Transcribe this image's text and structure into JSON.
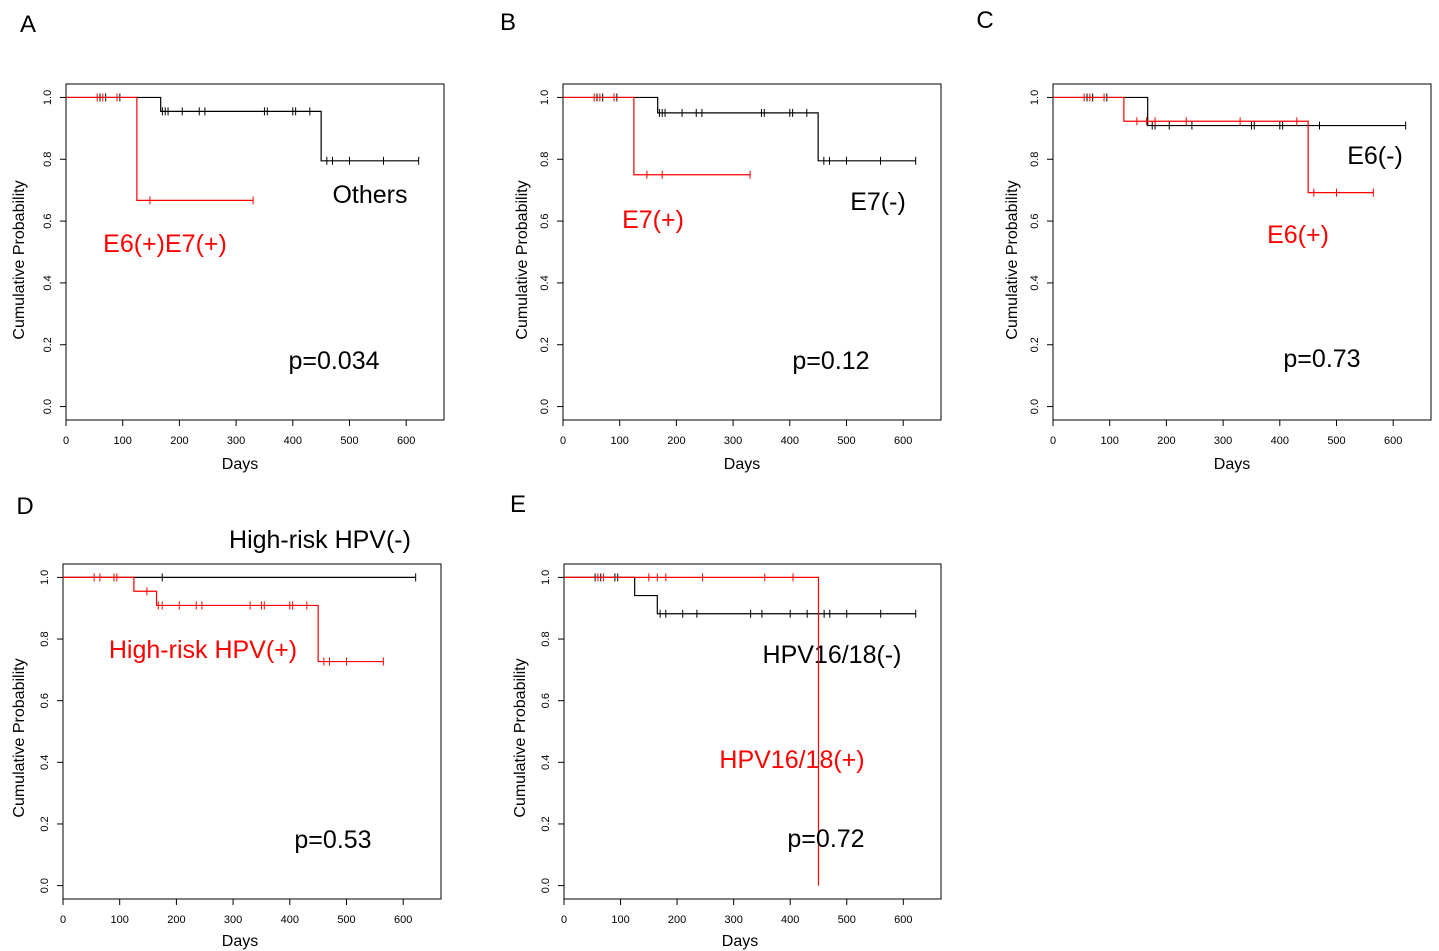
{
  "colors": {
    "black_group": "#000000",
    "red_group": "#ff0000"
  },
  "chart_data": [
    {
      "type": "line",
      "subtype": "kaplan-meier",
      "panel": "A",
      "xlabel": "Days",
      "ylabel": "Cumulative Probability",
      "xlim": [
        0,
        640
      ],
      "ylim": [
        0,
        1
      ],
      "xticks": [
        0,
        100,
        200,
        300,
        400,
        500,
        600
      ],
      "yticks": [
        0.0,
        0.2,
        0.4,
        0.6,
        0.8,
        1.0
      ],
      "series": [
        {
          "name": "Others",
          "color": "#000000",
          "steps": [
            [
              0,
              1.0
            ],
            [
              167,
              0.955
            ],
            [
              450,
              0.795
            ],
            [
              622,
              0.795
            ]
          ],
          "censors": [
            [
              60,
              1.0
            ],
            [
              70,
              1.0
            ],
            [
              95,
              1.0
            ],
            [
              170,
              0.955
            ],
            [
              175,
              0.955
            ],
            [
              180,
              0.955
            ],
            [
              205,
              0.955
            ],
            [
              235,
              0.955
            ],
            [
              245,
              0.955
            ],
            [
              350,
              0.955
            ],
            [
              355,
              0.955
            ],
            [
              400,
              0.955
            ],
            [
              405,
              0.955
            ],
            [
              430,
              0.955
            ],
            [
              460,
              0.795
            ],
            [
              470,
              0.795
            ],
            [
              500,
              0.795
            ],
            [
              560,
              0.795
            ],
            [
              622,
              0.795
            ]
          ]
        },
        {
          "name": "E6(+)E7(+)",
          "color": "#ff0000",
          "steps": [
            [
              0,
              1.0
            ],
            [
              125,
              0.667
            ],
            [
              330,
              0.667
            ]
          ],
          "censors": [
            [
              55,
              1.0
            ],
            [
              65,
              1.0
            ],
            [
              90,
              1.0
            ],
            [
              148,
              0.667
            ],
            [
              330,
              0.667
            ]
          ]
        }
      ],
      "annotation": "p=0.034"
    },
    {
      "type": "line",
      "subtype": "kaplan-meier",
      "panel": "B",
      "xlabel": "Days",
      "ylabel": "Cumulative Probability",
      "xlim": [
        0,
        640
      ],
      "ylim": [
        0,
        1
      ],
      "xticks": [
        0,
        100,
        200,
        300,
        400,
        500,
        600
      ],
      "yticks": [
        0.0,
        0.2,
        0.4,
        0.6,
        0.8,
        1.0
      ],
      "series": [
        {
          "name": "E7(-)",
          "color": "#000000",
          "steps": [
            [
              0,
              1.0
            ],
            [
              167,
              0.95
            ],
            [
              450,
              0.795
            ],
            [
              622,
              0.795
            ]
          ],
          "censors": [
            [
              60,
              1.0
            ],
            [
              70,
              1.0
            ],
            [
              95,
              1.0
            ],
            [
              170,
              0.95
            ],
            [
              175,
              0.95
            ],
            [
              180,
              0.95
            ],
            [
              210,
              0.95
            ],
            [
              235,
              0.95
            ],
            [
              245,
              0.95
            ],
            [
              350,
              0.95
            ],
            [
              355,
              0.95
            ],
            [
              400,
              0.95
            ],
            [
              405,
              0.95
            ],
            [
              430,
              0.95
            ],
            [
              460,
              0.795
            ],
            [
              470,
              0.795
            ],
            [
              500,
              0.795
            ],
            [
              560,
              0.795
            ],
            [
              622,
              0.795
            ]
          ]
        },
        {
          "name": "E7(+)",
          "color": "#ff0000",
          "steps": [
            [
              0,
              1.0
            ],
            [
              125,
              0.75
            ],
            [
              330,
              0.75
            ]
          ],
          "censors": [
            [
              55,
              1.0
            ],
            [
              65,
              1.0
            ],
            [
              90,
              1.0
            ],
            [
              148,
              0.75
            ],
            [
              175,
              0.75
            ],
            [
              330,
              0.75
            ]
          ]
        }
      ],
      "annotation": "p=0.12"
    },
    {
      "type": "line",
      "subtype": "kaplan-meier",
      "panel": "C",
      "xlabel": "Days",
      "ylabel": "Cumulative Probability",
      "xlim": [
        0,
        640
      ],
      "ylim": [
        0,
        1
      ],
      "xticks": [
        0,
        100,
        200,
        300,
        400,
        500,
        600
      ],
      "yticks": [
        0.0,
        0.2,
        0.4,
        0.6,
        0.8,
        1.0
      ],
      "series": [
        {
          "name": "E6(-)",
          "color": "#000000",
          "steps": [
            [
              0,
              1.0
            ],
            [
              167,
              0.909
            ],
            [
              622,
              0.909
            ]
          ],
          "censors": [
            [
              60,
              1.0
            ],
            [
              70,
              1.0
            ],
            [
              95,
              1.0
            ],
            [
              175,
              0.909
            ],
            [
              180,
              0.909
            ],
            [
              205,
              0.909
            ],
            [
              245,
              0.909
            ],
            [
              350,
              0.909
            ],
            [
              355,
              0.909
            ],
            [
              400,
              0.909
            ],
            [
              405,
              0.909
            ],
            [
              470,
              0.909
            ],
            [
              622,
              0.909
            ]
          ]
        },
        {
          "name": "E6(+)",
          "color": "#ff0000",
          "steps": [
            [
              0,
              1.0
            ],
            [
              125,
              0.923
            ],
            [
              450,
              0.692
            ],
            [
              565,
              0.692
            ]
          ],
          "censors": [
            [
              55,
              1.0
            ],
            [
              65,
              1.0
            ],
            [
              90,
              1.0
            ],
            [
              148,
              0.923
            ],
            [
              165,
              0.923
            ],
            [
              180,
              0.923
            ],
            [
              235,
              0.923
            ],
            [
              330,
              0.923
            ],
            [
              430,
              0.923
            ],
            [
              460,
              0.692
            ],
            [
              500,
              0.692
            ],
            [
              565,
              0.692
            ]
          ]
        }
      ],
      "annotation": "p=0.73"
    },
    {
      "type": "line",
      "subtype": "kaplan-meier",
      "panel": "D",
      "xlabel": "Days",
      "ylabel": "Cumulative Probability",
      "xlim": [
        0,
        640
      ],
      "ylim": [
        0,
        1
      ],
      "xticks": [
        0,
        100,
        200,
        300,
        400,
        500,
        600
      ],
      "yticks": [
        0.0,
        0.2,
        0.4,
        0.6,
        0.8,
        1.0
      ],
      "series": [
        {
          "name": "High-risk HPV(-)",
          "color": "#000000",
          "steps": [
            [
              0,
              1.0
            ],
            [
              622,
              1.0
            ]
          ],
          "censors": [
            [
              175,
              1.0
            ],
            [
              622,
              1.0
            ]
          ]
        },
        {
          "name": "High-risk HPV(+)",
          "color": "#ff0000",
          "steps": [
            [
              0,
              1.0
            ],
            [
              125,
              0.955
            ],
            [
              165,
              0.909
            ],
            [
              450,
              0.727
            ],
            [
              565,
              0.727
            ]
          ],
          "censors": [
            [
              55,
              1.0
            ],
            [
              65,
              1.0
            ],
            [
              90,
              1.0
            ],
            [
              95,
              1.0
            ],
            [
              148,
              0.955
            ],
            [
              168,
              0.909
            ],
            [
              175,
              0.909
            ],
            [
              205,
              0.909
            ],
            [
              235,
              0.909
            ],
            [
              245,
              0.909
            ],
            [
              330,
              0.909
            ],
            [
              350,
              0.909
            ],
            [
              355,
              0.909
            ],
            [
              400,
              0.909
            ],
            [
              405,
              0.909
            ],
            [
              430,
              0.909
            ],
            [
              460,
              0.727
            ],
            [
              470,
              0.727
            ],
            [
              500,
              0.727
            ],
            [
              565,
              0.727
            ]
          ]
        }
      ],
      "annotation": "p=0.53"
    },
    {
      "type": "line",
      "subtype": "kaplan-meier",
      "panel": "E",
      "xlabel": "Days",
      "ylabel": "Cumulative Probability",
      "xlim": [
        0,
        640
      ],
      "ylim": [
        0,
        1
      ],
      "xticks": [
        0,
        100,
        200,
        300,
        400,
        500,
        600
      ],
      "yticks": [
        0.0,
        0.2,
        0.4,
        0.6,
        0.8,
        1.0
      ],
      "series": [
        {
          "name": "HPV16/18(-)",
          "color": "#000000",
          "steps": [
            [
              0,
              1.0
            ],
            [
              125,
              0.941
            ],
            [
              165,
              0.882
            ],
            [
              622,
              0.882
            ]
          ],
          "censors": [
            [
              55,
              1.0
            ],
            [
              65,
              1.0
            ],
            [
              90,
              1.0
            ],
            [
              95,
              1.0
            ],
            [
              170,
              0.882
            ],
            [
              180,
              0.882
            ],
            [
              210,
              0.882
            ],
            [
              235,
              0.882
            ],
            [
              330,
              0.882
            ],
            [
              350,
              0.882
            ],
            [
              400,
              0.882
            ],
            [
              430,
              0.882
            ],
            [
              460,
              0.882
            ],
            [
              470,
              0.882
            ],
            [
              500,
              0.882
            ],
            [
              560,
              0.882
            ],
            [
              622,
              0.882
            ]
          ]
        },
        {
          "name": "HPV16/18(+)",
          "color": "#ff0000",
          "steps": [
            [
              0,
              1.0
            ],
            [
              450,
              0.0
            ]
          ],
          "censors": [
            [
              60,
              1.0
            ],
            [
              70,
              1.0
            ],
            [
              150,
              1.0
            ],
            [
              165,
              1.0
            ],
            [
              180,
              1.0
            ],
            [
              245,
              1.0
            ],
            [
              355,
              1.0
            ],
            [
              405,
              1.0
            ]
          ]
        }
      ],
      "annotation": "p=0.72"
    }
  ]
}
